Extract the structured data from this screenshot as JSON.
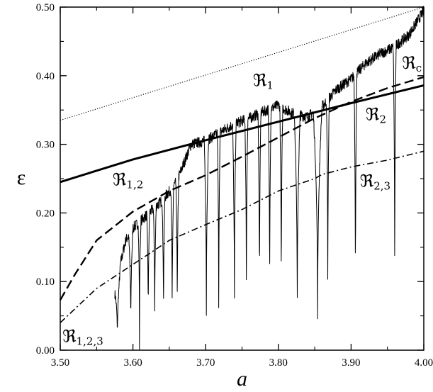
{
  "chart_data": {
    "type": "line",
    "title": "",
    "xlabel": "a",
    "ylabel": "ε",
    "xlim": [
      3.5,
      4.0
    ],
    "ylim": [
      0.0,
      0.5
    ],
    "x_ticks": [
      "3.50",
      "3.60",
      "3.70",
      "3.80",
      "3.90",
      "4.00"
    ],
    "y_ticks": [
      "0.00",
      "0.10",
      "0.20",
      "0.30",
      "0.40",
      "0.50"
    ],
    "grid": false,
    "legend": "none",
    "series": [
      {
        "style": "dotted",
        "x": [
          3.5,
          4.0
        ],
        "y": [
          0.335,
          0.5
        ]
      },
      {
        "style": "solid-thick",
        "x": [
          3.5,
          3.6,
          3.7,
          3.8,
          3.9,
          4.0
        ],
        "y": [
          0.245,
          0.278,
          0.306,
          0.333,
          0.36,
          0.386
        ]
      },
      {
        "style": "dashed",
        "x": [
          3.5,
          3.52,
          3.55,
          3.6,
          3.65,
          3.7,
          3.75,
          3.8,
          3.85,
          3.9,
          3.95,
          4.0
        ],
        "y": [
          0.073,
          0.11,
          0.16,
          0.202,
          0.232,
          0.255,
          0.282,
          0.31,
          0.338,
          0.362,
          0.382,
          0.398
        ]
      },
      {
        "style": "dash-dot",
        "x": [
          3.5,
          3.55,
          3.6,
          3.65,
          3.7,
          3.75,
          3.8,
          3.85,
          3.86,
          3.9,
          3.95,
          4.0
        ],
        "y": [
          0.04,
          0.09,
          0.125,
          0.16,
          0.183,
          0.205,
          0.232,
          0.25,
          0.256,
          0.267,
          0.277,
          0.29
        ]
      },
      {
        "style": "solid-thin-noisy",
        "x": [
          3.575,
          3.59,
          3.6,
          3.61,
          3.62,
          3.64,
          3.66,
          3.68,
          3.7,
          3.72,
          3.74,
          3.76,
          3.78,
          3.8,
          3.82,
          3.84,
          3.86,
          3.88,
          3.9,
          3.92,
          3.94,
          3.96,
          3.98,
          4.0
        ],
        "y": [
          0.09,
          0.16,
          0.178,
          0.188,
          0.198,
          0.218,
          0.245,
          0.3,
          0.305,
          0.318,
          0.33,
          0.338,
          0.348,
          0.357,
          0.345,
          0.34,
          0.355,
          0.38,
          0.395,
          0.418,
          0.432,
          0.442,
          0.46,
          0.495
        ]
      }
    ],
    "windows_dips": [
      {
        "x_left": 3.574,
        "x_right": 3.583
      },
      {
        "x_left": 3.594,
        "x_right": 3.6
      },
      {
        "x_left": 3.607,
        "x_right": 3.611
      },
      {
        "x_left": 3.619,
        "x_right": 3.623
      },
      {
        "x_left": 3.628,
        "x_right": 3.632
      },
      {
        "x_left": 3.64,
        "x_right": 3.644
      },
      {
        "x_left": 3.652,
        "x_right": 3.656
      },
      {
        "x_left": 3.659,
        "x_right": 3.663
      },
      {
        "x_left": 3.698,
        "x_right": 3.704
      },
      {
        "x_left": 3.716,
        "x_right": 3.72
      },
      {
        "x_left": 3.737,
        "x_right": 3.742
      },
      {
        "x_left": 3.754,
        "x_right": 3.758
      },
      {
        "x_left": 3.772,
        "x_right": 3.776
      },
      {
        "x_left": 3.786,
        "x_right": 3.79
      },
      {
        "x_left": 3.802,
        "x_right": 3.806
      },
      {
        "x_left": 3.822,
        "x_right": 3.83
      },
      {
        "x_left": 3.848,
        "x_right": 3.86
      },
      {
        "x_left": 3.866,
        "x_right": 3.87
      },
      {
        "x_left": 3.904,
        "x_right": 3.908
      },
      {
        "x_left": 3.958,
        "x_right": 3.962
      }
    ],
    "annotations": [
      {
        "main": "ℜ",
        "sub": "1",
        "x": 3.765,
        "y": 0.385
      },
      {
        "main": "ℜ",
        "sub": "c",
        "x": 3.97,
        "y": 0.41
      },
      {
        "main": "ℜ",
        "sub": "2",
        "x": 3.92,
        "y": 0.335
      },
      {
        "main": "ℜ",
        "sub": "1,2",
        "x": 3.572,
        "y": 0.24
      },
      {
        "main": "ℜ",
        "sub": "2,3",
        "x": 3.912,
        "y": 0.238
      },
      {
        "main": "ℜ",
        "sub": "1,2,3",
        "x": 3.503,
        "y": 0.012
      }
    ]
  }
}
